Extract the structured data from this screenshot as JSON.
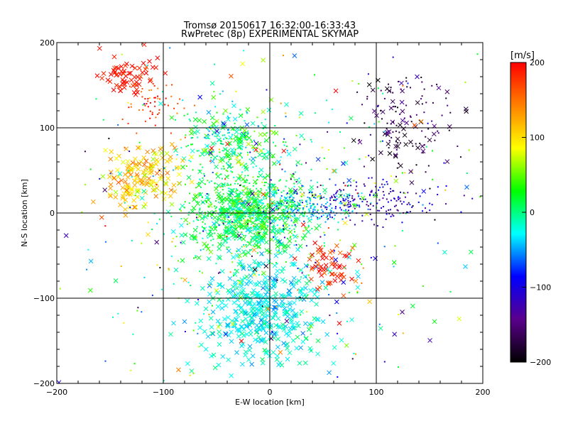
{
  "chart_data": {
    "type": "scatter",
    "title": "Tromsø 20150617 16:32:00-16:33:43",
    "subtitle": "RwPretec (8p) EXPERIMENTAL SKYMAP",
    "xlabel": "E-W location [km]",
    "ylabel": "N-S location [km]",
    "xlim": [
      -200,
      200
    ],
    "ylim": [
      -200,
      200
    ],
    "xticks": [
      -200,
      -100,
      0,
      100,
      200
    ],
    "yticks": [
      -200,
      -100,
      0,
      100,
      200
    ],
    "grid": true,
    "marker_kinds": [
      "dot",
      "cross"
    ],
    "colorbar": {
      "label": "[m/s]",
      "min": -200,
      "max": 200,
      "ticks": [
        200,
        100,
        0,
        -100,
        -200
      ],
      "colors": [
        "#000000",
        "#5a008c",
        "#0000ff",
        "#00ffff",
        "#00ff00",
        "#ffff00",
        "#ff8000",
        "#ff0000"
      ]
    },
    "clusters": [
      {
        "center": [
          -20,
          0
        ],
        "spread": [
          28,
          24
        ],
        "count": 900,
        "value": 10,
        "value_spread": 25,
        "marker": "mixed"
      },
      {
        "center": [
          -5,
          -110
        ],
        "spread": [
          30,
          35
        ],
        "count": 450,
        "value": -25,
        "value_spread": 15,
        "marker": "cross"
      },
      {
        "center": [
          -35,
          85
        ],
        "spread": [
          25,
          20
        ],
        "count": 280,
        "value": 5,
        "value_spread": 35,
        "marker": "mixed"
      },
      {
        "center": [
          -120,
          40
        ],
        "spread": [
          18,
          20
        ],
        "count": 160,
        "value": 110,
        "value_spread": 25,
        "marker": "cross"
      },
      {
        "center": [
          -135,
          160
        ],
        "spread": [
          14,
          12
        ],
        "count": 70,
        "value": 190,
        "value_spread": 15,
        "marker": "cross"
      },
      {
        "center": [
          -110,
          130
        ],
        "spread": [
          18,
          15
        ],
        "count": 60,
        "value": 165,
        "value_spread": 30,
        "marker": "dot"
      },
      {
        "center": [
          125,
          110
        ],
        "spread": [
          22,
          32
        ],
        "count": 140,
        "value": -165,
        "value_spread": 20,
        "marker": "mixed"
      },
      {
        "center": [
          85,
          15
        ],
        "spread": [
          35,
          12
        ],
        "count": 220,
        "value": -115,
        "value_spread": 30,
        "marker": "dot"
      },
      {
        "center": [
          40,
          5
        ],
        "spread": [
          18,
          10
        ],
        "count": 150,
        "value": -45,
        "value_spread": 25,
        "marker": "dot"
      },
      {
        "center": [
          55,
          -60
        ],
        "spread": [
          15,
          15
        ],
        "count": 60,
        "value": 185,
        "value_spread": 20,
        "marker": "cross"
      },
      {
        "center": [
          0,
          0
        ],
        "spread": [
          90,
          90
        ],
        "count": 380,
        "value": 0,
        "value_spread": 90,
        "marker": "dot"
      },
      {
        "center": [
          0,
          0
        ],
        "spread": [
          110,
          110
        ],
        "count": 120,
        "value": 0,
        "value_spread": 120,
        "marker": "cross"
      }
    ]
  }
}
